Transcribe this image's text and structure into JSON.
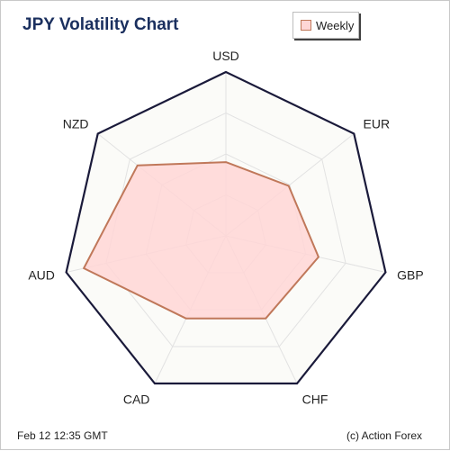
{
  "title": "JPY Volatility Chart",
  "footer": {
    "date": "Feb 12  12:35 GMT",
    "credit": "(c) Action Forex"
  },
  "colors": {
    "title": "#1a2f5e",
    "outline": "#1a1a3a",
    "grid": "#e2e2e2",
    "plot_background": "#fbfbf8",
    "series_stroke": "#c0785a",
    "series_fill": "#ffd6d6"
  },
  "chart_data": {
    "type": "radar",
    "title": "JPY Volatility Chart",
    "categories": [
      "USD",
      "EUR",
      "GBP",
      "CHF",
      "CAD",
      "AUD",
      "NZD"
    ],
    "rlim": [
      0,
      1
    ],
    "grid_levels": 4,
    "grid": true,
    "legend_position": "top-right",
    "series": [
      {
        "name": "Weekly",
        "values": [
          0.45,
          0.49,
          0.58,
          0.56,
          0.56,
          0.89,
          0.69
        ]
      }
    ]
  }
}
